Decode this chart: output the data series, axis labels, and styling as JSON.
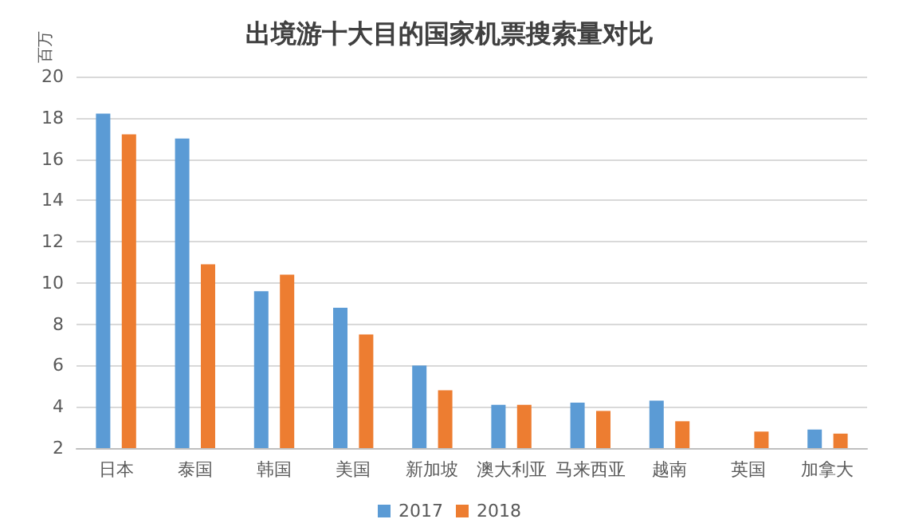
{
  "chart_data": {
    "type": "bar",
    "title": "出境游十大目的国家机票搜索量对比",
    "ylabel": "百万",
    "categories": [
      "日本",
      "泰国",
      "韩国",
      "美国",
      "新加坡",
      "澳大利亚",
      "马来西亚",
      "越南",
      "英国",
      "加拿大"
    ],
    "series": [
      {
        "name": "2017",
        "color": "#5b9bd5",
        "values": [
          18.2,
          17.0,
          9.6,
          8.8,
          6.0,
          4.1,
          4.2,
          4.3,
          null,
          2.9
        ]
      },
      {
        "name": "2018",
        "color": "#ed7d31",
        "values": [
          17.2,
          10.9,
          10.4,
          7.5,
          4.8,
          4.1,
          3.8,
          3.3,
          2.8,
          2.7
        ]
      }
    ],
    "ylim": [
      2,
      20
    ],
    "yticks": [
      2,
      4,
      6,
      8,
      10,
      12,
      14,
      16,
      18,
      20
    ],
    "grid": "y",
    "legend": "bottom"
  }
}
